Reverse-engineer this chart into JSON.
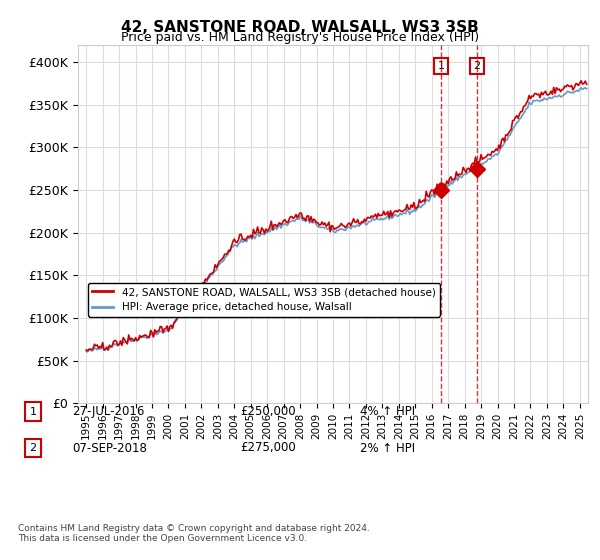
{
  "title": "42, SANSTONE ROAD, WALSALL, WS3 3SB",
  "subtitle": "Price paid vs. HM Land Registry's House Price Index (HPI)",
  "ylim": [
    0,
    420000
  ],
  "yticks": [
    0,
    50000,
    100000,
    150000,
    200000,
    250000,
    300000,
    350000,
    400000
  ],
  "ytick_labels": [
    "£0",
    "£50K",
    "£100K",
    "£150K",
    "£200K",
    "£250K",
    "£300K",
    "£350K",
    "£400K"
  ],
  "hpi_color": "#6699cc",
  "price_color": "#cc0000",
  "marker_color": "#cc0000",
  "legend_label_price": "42, SANSTONE ROAD, WALSALL, WS3 3SB (detached house)",
  "legend_label_hpi": "HPI: Average price, detached house, Walsall",
  "transaction1_label": "1",
  "transaction1_date": "27-JUL-2016",
  "transaction1_price": "£250,000",
  "transaction1_hpi": "4% ↑ HPI",
  "transaction2_label": "2",
  "transaction2_date": "07-SEP-2018",
  "transaction2_price": "£275,000",
  "transaction2_hpi": "2% ↑ HPI",
  "footnote": "Contains HM Land Registry data © Crown copyright and database right 2024.\nThis data is licensed under the Open Government Licence v3.0.",
  "background_color": "#ffffff",
  "plot_bg_color": "#ffffff",
  "grid_color": "#dddddd"
}
